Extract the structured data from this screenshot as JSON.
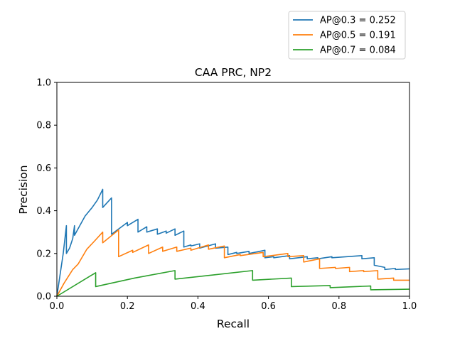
{
  "chart_data": {
    "type": "line",
    "title": "CAA PRC, NP2",
    "xlabel": "Recall",
    "ylabel": "Precision",
    "xlim": [
      0,
      1
    ],
    "ylim": [
      0,
      1
    ],
    "xticks": [
      "0.0",
      "0.2",
      "0.4",
      "0.6",
      "0.8",
      "1.0"
    ],
    "yticks": [
      "0.0",
      "0.2",
      "0.4",
      "0.6",
      "0.8",
      "1.0"
    ],
    "grid": false,
    "legend_position": "top-right",
    "series": [
      {
        "name": "AP@0.3 = 0.252",
        "color": "#1f77b4",
        "points": [
          [
            0.0,
            0.0
          ],
          [
            0.009,
            0.1
          ],
          [
            0.018,
            0.2
          ],
          [
            0.027,
            0.33
          ],
          [
            0.027,
            0.2
          ],
          [
            0.036,
            0.225
          ],
          [
            0.045,
            0.27
          ],
          [
            0.05,
            0.33
          ],
          [
            0.05,
            0.285
          ],
          [
            0.065,
            0.33
          ],
          [
            0.08,
            0.375
          ],
          [
            0.1,
            0.415
          ],
          [
            0.115,
            0.45
          ],
          [
            0.13,
            0.5
          ],
          [
            0.13,
            0.415
          ],
          [
            0.155,
            0.46
          ],
          [
            0.155,
            0.29
          ],
          [
            0.2,
            0.345
          ],
          [
            0.2,
            0.33
          ],
          [
            0.23,
            0.36
          ],
          [
            0.23,
            0.3
          ],
          [
            0.255,
            0.325
          ],
          [
            0.255,
            0.3
          ],
          [
            0.285,
            0.315
          ],
          [
            0.285,
            0.29
          ],
          [
            0.31,
            0.305
          ],
          [
            0.31,
            0.295
          ],
          [
            0.335,
            0.315
          ],
          [
            0.335,
            0.285
          ],
          [
            0.36,
            0.305
          ],
          [
            0.36,
            0.23
          ],
          [
            0.38,
            0.24
          ],
          [
            0.38,
            0.235
          ],
          [
            0.405,
            0.245
          ],
          [
            0.405,
            0.225
          ],
          [
            0.45,
            0.245
          ],
          [
            0.45,
            0.225
          ],
          [
            0.485,
            0.23
          ],
          [
            0.485,
            0.195
          ],
          [
            0.51,
            0.205
          ],
          [
            0.51,
            0.2
          ],
          [
            0.545,
            0.21
          ],
          [
            0.545,
            0.2
          ],
          [
            0.59,
            0.215
          ],
          [
            0.59,
            0.18
          ],
          [
            0.615,
            0.185
          ],
          [
            0.615,
            0.18
          ],
          [
            0.66,
            0.19
          ],
          [
            0.66,
            0.175
          ],
          [
            0.71,
            0.185
          ],
          [
            0.71,
            0.175
          ],
          [
            0.74,
            0.18
          ],
          [
            0.74,
            0.175
          ],
          [
            0.78,
            0.185
          ],
          [
            0.78,
            0.18
          ],
          [
            0.865,
            0.19
          ],
          [
            0.865,
            0.175
          ],
          [
            0.9,
            0.18
          ],
          [
            0.9,
            0.145
          ],
          [
            0.93,
            0.135
          ],
          [
            0.93,
            0.125
          ],
          [
            0.96,
            0.13
          ],
          [
            0.96,
            0.125
          ],
          [
            1.0,
            0.128
          ]
        ]
      },
      {
        "name": "AP@0.5 = 0.191",
        "color": "#ff7f0e",
        "points": [
          [
            0.0,
            0.0
          ],
          [
            0.02,
            0.06
          ],
          [
            0.045,
            0.125
          ],
          [
            0.06,
            0.15
          ],
          [
            0.085,
            0.22
          ],
          [
            0.105,
            0.255
          ],
          [
            0.13,
            0.3
          ],
          [
            0.13,
            0.25
          ],
          [
            0.175,
            0.31
          ],
          [
            0.175,
            0.185
          ],
          [
            0.215,
            0.215
          ],
          [
            0.215,
            0.205
          ],
          [
            0.26,
            0.24
          ],
          [
            0.26,
            0.2
          ],
          [
            0.3,
            0.23
          ],
          [
            0.3,
            0.21
          ],
          [
            0.34,
            0.23
          ],
          [
            0.34,
            0.21
          ],
          [
            0.38,
            0.225
          ],
          [
            0.38,
            0.215
          ],
          [
            0.43,
            0.24
          ],
          [
            0.43,
            0.22
          ],
          [
            0.475,
            0.235
          ],
          [
            0.475,
            0.18
          ],
          [
            0.52,
            0.195
          ],
          [
            0.52,
            0.19
          ],
          [
            0.585,
            0.205
          ],
          [
            0.585,
            0.185
          ],
          [
            0.655,
            0.2
          ],
          [
            0.655,
            0.185
          ],
          [
            0.7,
            0.19
          ],
          [
            0.7,
            0.16
          ],
          [
            0.745,
            0.175
          ],
          [
            0.745,
            0.13
          ],
          [
            0.79,
            0.135
          ],
          [
            0.79,
            0.13
          ],
          [
            0.83,
            0.135
          ],
          [
            0.83,
            0.115
          ],
          [
            0.87,
            0.12
          ],
          [
            0.87,
            0.115
          ],
          [
            0.91,
            0.12
          ],
          [
            0.91,
            0.08
          ],
          [
            0.955,
            0.085
          ],
          [
            0.955,
            0.075
          ],
          [
            1.0,
            0.075
          ]
        ]
      },
      {
        "name": "AP@0.7 = 0.084",
        "color": "#2ca02c",
        "points": [
          [
            0.0,
            0.0
          ],
          [
            0.11,
            0.11
          ],
          [
            0.11,
            0.045
          ],
          [
            0.22,
            0.085
          ],
          [
            0.22,
            0.085
          ],
          [
            0.335,
            0.12
          ],
          [
            0.335,
            0.08
          ],
          [
            0.445,
            0.1
          ],
          [
            0.555,
            0.12
          ],
          [
            0.555,
            0.075
          ],
          [
            0.665,
            0.085
          ],
          [
            0.665,
            0.045
          ],
          [
            0.775,
            0.05
          ],
          [
            0.775,
            0.04
          ],
          [
            0.89,
            0.048
          ],
          [
            0.89,
            0.03
          ],
          [
            1.0,
            0.033
          ]
        ]
      }
    ]
  }
}
